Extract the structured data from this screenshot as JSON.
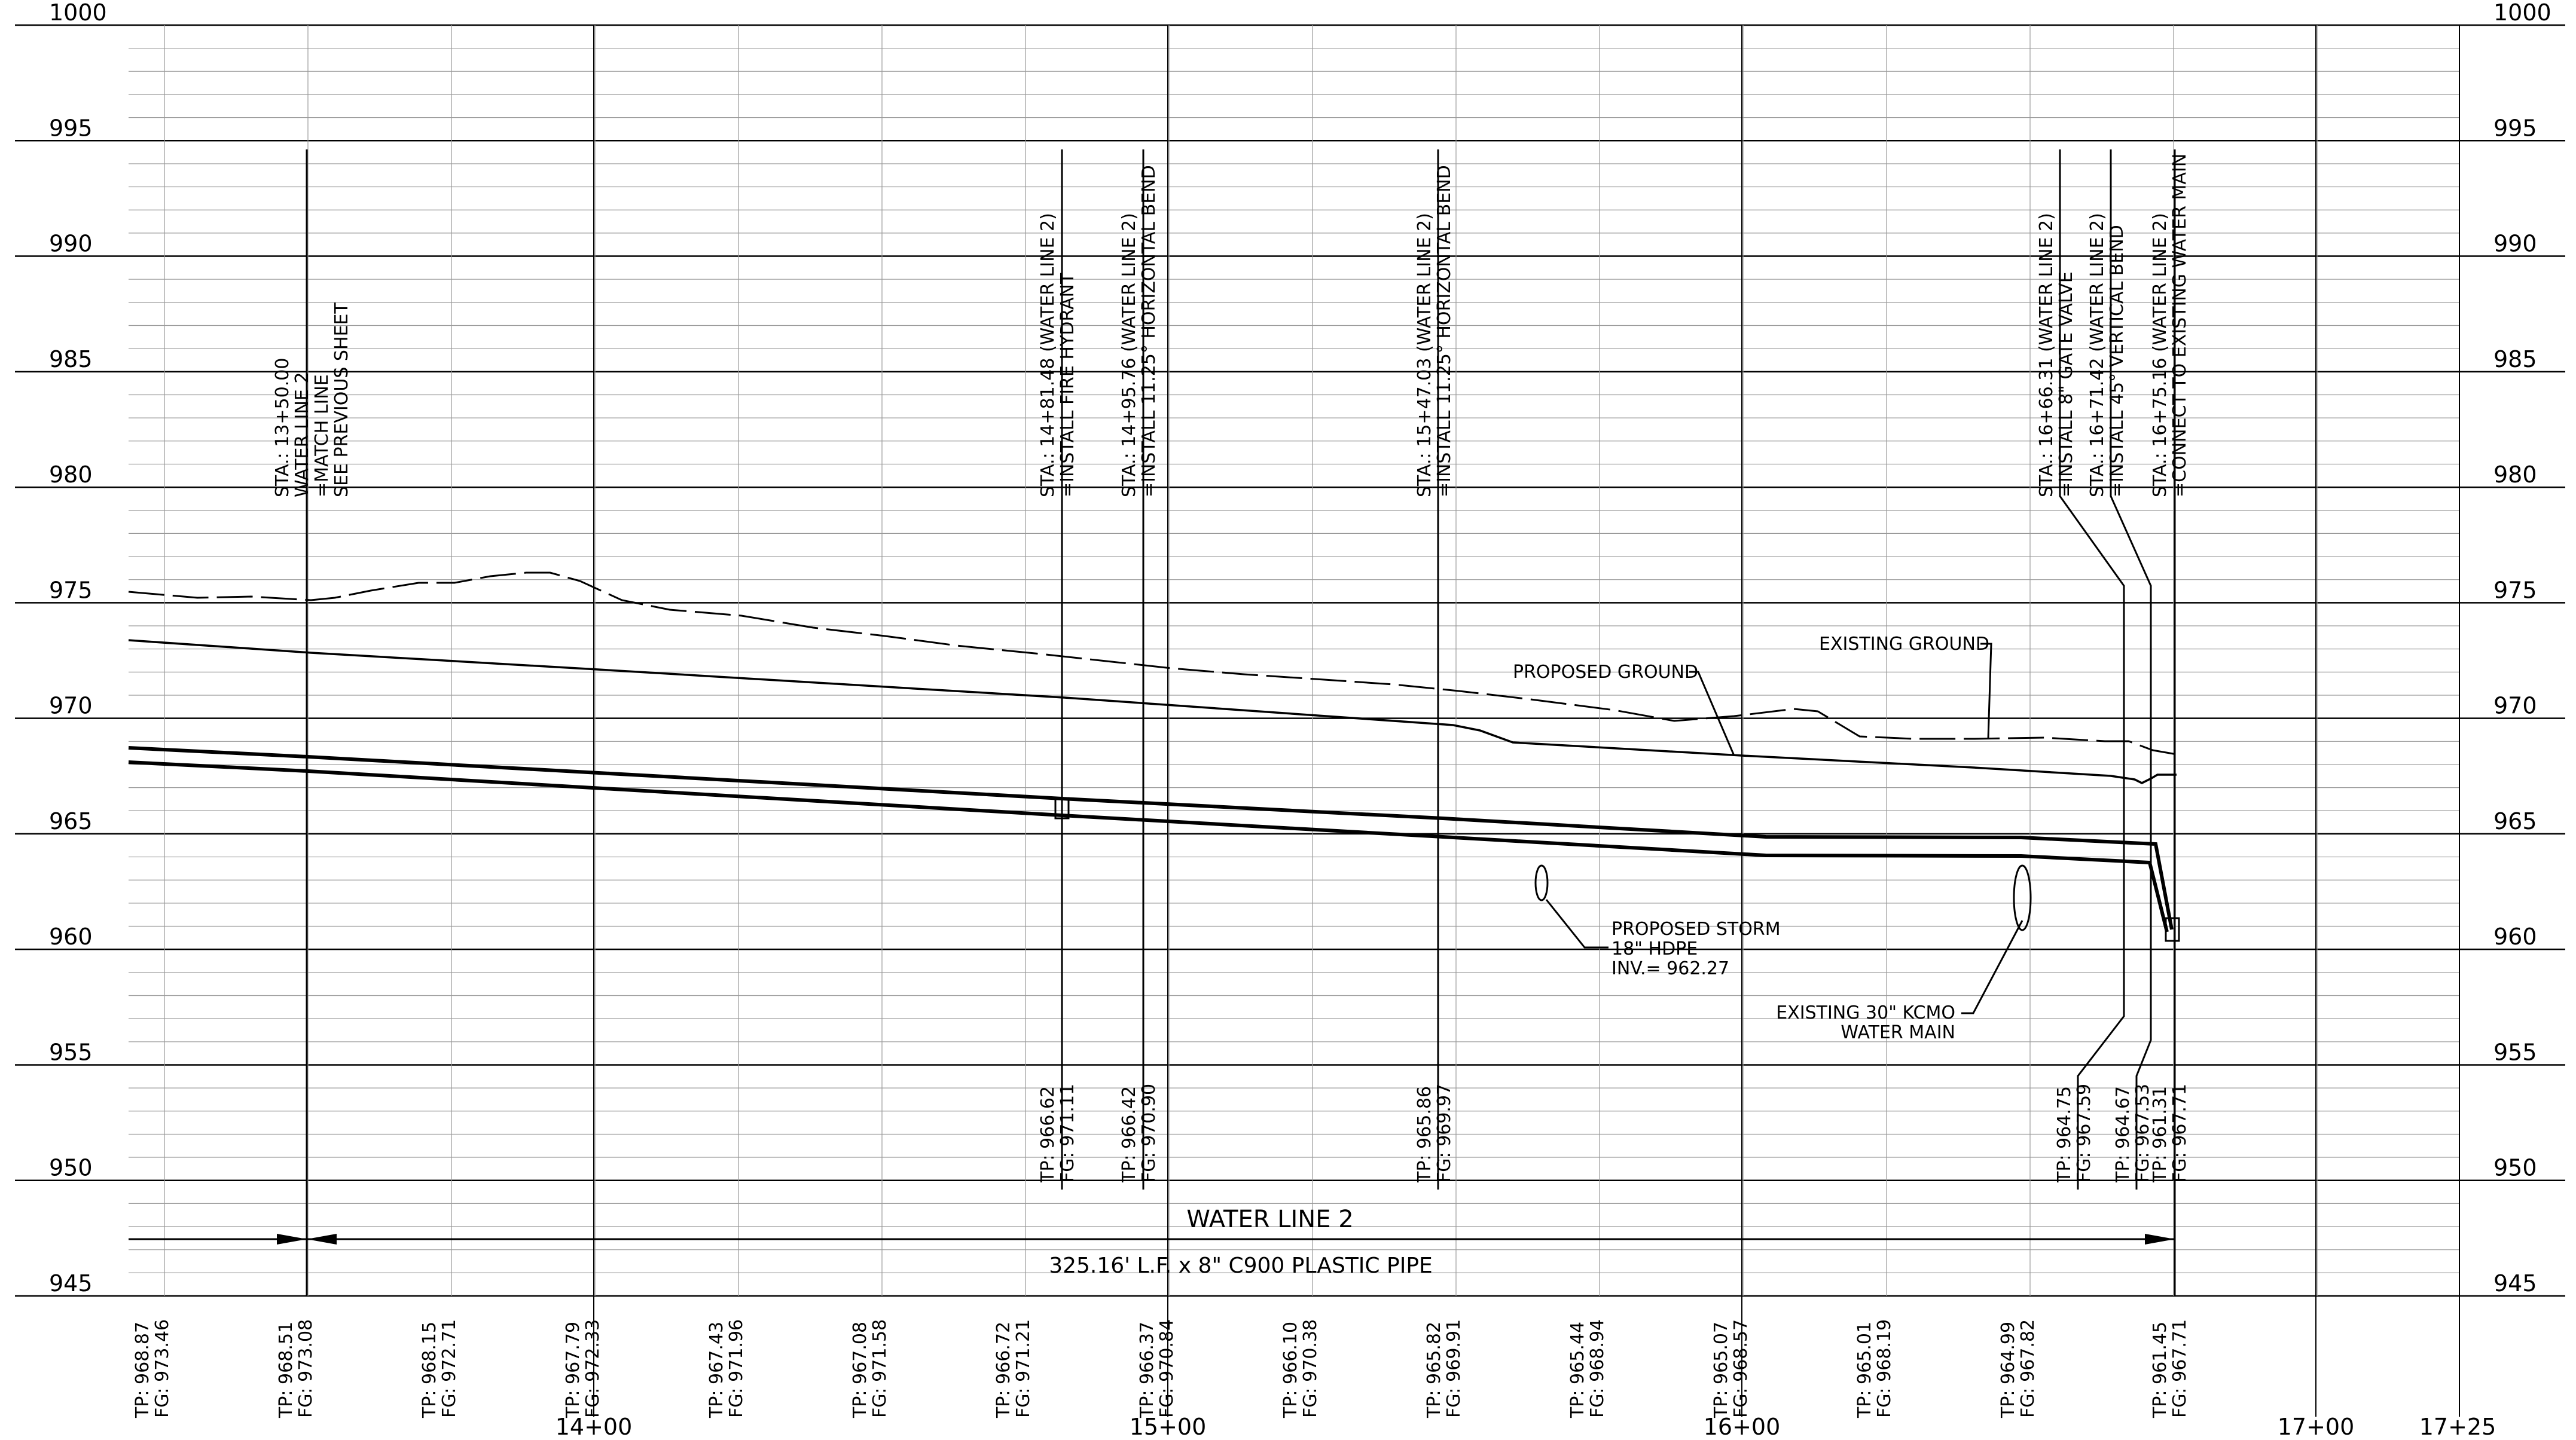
{
  "elevation_labels": [
    "1000",
    "995",
    "990",
    "985",
    "980",
    "975",
    "970",
    "965",
    "960",
    "955",
    "950",
    "945"
  ],
  "station_labels": [
    "14+00",
    "15+00",
    "16+00",
    "17+00",
    "17+25"
  ],
  "callouts": {
    "match": [
      "STA.: 13+50.00",
      "WATER LINE 2",
      "=MATCH LINE",
      "SEE PREVIOUS SHEET"
    ],
    "hydrant": [
      "STA.: 14+81.48 (WATER LINE 2)",
      "=INSTALL FIRE HYDRANT"
    ],
    "bend1": [
      "STA.: 14+95.76 (WATER LINE 2)",
      "=INSTALL 11.25° HORIZONTAL BEND"
    ],
    "bend2": [
      "STA.: 15+47.03 (WATER LINE 2)",
      "=INSTALL 11.25° HORIZONTAL BEND"
    ],
    "valve": [
      "STA.: 16+66.31 (WATER LINE 2)",
      "=INSTALL 8\" GATE VALVE"
    ],
    "vbend": [
      "STA.: 16+71.42 (WATER LINE 2)",
      "=INSTALL 45° VERTICAL BEND"
    ],
    "connect": [
      "STA.: 16+75.16 (WATER LINE 2)",
      "=CONNECT TO EXISTING WATER MAIN"
    ]
  },
  "point_elevations": {
    "hydrant": [
      "TP: 966.62",
      "FG: 971.11"
    ],
    "bend1": [
      "TP: 966.42",
      "FG: 970.90"
    ],
    "bend2": [
      "TP: 965.86",
      "FG: 969.97"
    ],
    "valve": [
      "TP: 964.75",
      "FG: 967.59"
    ],
    "vbend": [
      "TP: 964.67",
      "FG: 967.53"
    ],
    "connect": [
      "TP: 961.31",
      "FG: 967.71"
    ]
  },
  "bottom_elevations": [
    [
      "TP: 968.87",
      "FG: 973.46"
    ],
    [
      "TP: 968.51",
      "FG: 973.08"
    ],
    [
      "TP: 968.15",
      "FG: 972.71"
    ],
    [
      "TP: 967.79",
      "FG: 972.33"
    ],
    [
      "TP: 967.43",
      "FG: 971.96"
    ],
    [
      "TP: 967.08",
      "FG: 971.58"
    ],
    [
      "TP: 966.72",
      "FG: 971.21"
    ],
    [
      "TP: 966.37",
      "FG: 970.84"
    ],
    [
      "TP: 966.10",
      "FG: 970.38"
    ],
    [
      "TP: 965.82",
      "FG: 969.91"
    ],
    [
      "TP: 965.44",
      "FG: 968.94"
    ],
    [
      "TP: 965.07",
      "FG: 968.57"
    ],
    [
      "TP: 965.01",
      "FG: 968.19"
    ],
    [
      "TP: 964.99",
      "FG: 967.82"
    ],
    [
      "TP: 961.45",
      "FG: 967.71"
    ]
  ],
  "labels": {
    "proposed_ground": "PROPOSED GROUND",
    "existing_ground": "EXISTING GROUND",
    "storm": [
      "PROPOSED STORM",
      "18\" HDPE",
      "INV.= 962.27"
    ],
    "kcmo": [
      "EXISTING 30\" KCMO",
      "WATER MAIN"
    ],
    "water_line_title": "WATER LINE 2",
    "pipe_description": "325.16' L.F. x 8\" C900 PLASTIC PIPE"
  }
}
